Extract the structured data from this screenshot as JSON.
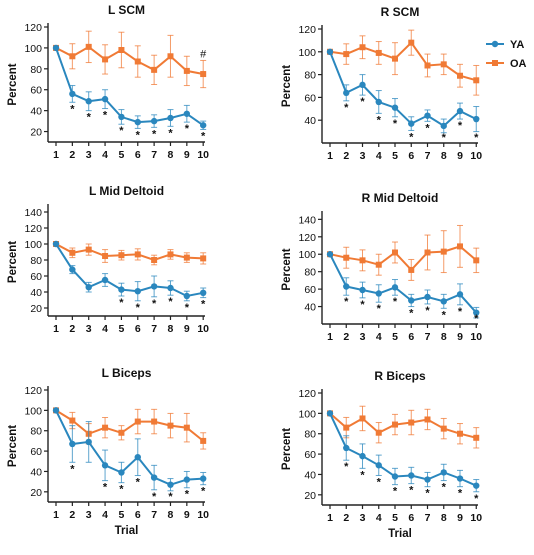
{
  "colors": {
    "ya": "#2a87be",
    "oa": "#f07a35",
    "axis": "#222222",
    "text": "#111111"
  },
  "legend": {
    "placement": "top-right",
    "items": [
      {
        "label": "YA",
        "series": "ya"
      },
      {
        "label": "OA",
        "series": "oa"
      }
    ]
  },
  "chart_data": [
    {
      "type": "line",
      "title": "L SCM",
      "xlabel": "",
      "ylabel": "Percent",
      "x": [
        1,
        2,
        3,
        4,
        5,
        6,
        7,
        8,
        9,
        10
      ],
      "ylim": [
        10,
        120
      ],
      "yticks": [
        20,
        40,
        60,
        80,
        100,
        120
      ],
      "series": [
        {
          "name": "YA",
          "key": "ya",
          "values": [
            100,
            56,
            49,
            51,
            34,
            29,
            30,
            33,
            37,
            26
          ],
          "err": [
            0,
            8,
            9,
            9,
            7,
            6,
            6,
            8,
            8,
            4
          ]
        },
        {
          "name": "OA",
          "key": "oa",
          "values": [
            100,
            92,
            101,
            89,
            98,
            87,
            79,
            92,
            78,
            75
          ],
          "err": [
            0,
            12,
            15,
            14,
            17,
            15,
            14,
            20,
            14,
            13
          ]
        }
      ],
      "ya_sig": [
        "",
        "*",
        "*",
        "*",
        "*",
        "*",
        "*",
        "*",
        "*",
        "*"
      ],
      "oa_sig": [
        "",
        "",
        "",
        "",
        "",
        "",
        "",
        "",
        "",
        "#"
      ]
    },
    {
      "type": "line",
      "title": "R SCM",
      "xlabel": "",
      "ylabel": "Percent",
      "x": [
        1,
        2,
        3,
        4,
        5,
        6,
        7,
        8,
        9,
        10
      ],
      "ylim": [
        20,
        120
      ],
      "yticks": [
        40,
        60,
        80,
        100,
        120
      ],
      "series": [
        {
          "name": "YA",
          "key": "ya",
          "values": [
            100,
            64,
            71,
            56,
            51,
            37,
            44,
            35,
            48,
            41
          ],
          "err": [
            0,
            7,
            9,
            10,
            8,
            6,
            5,
            6,
            7,
            11
          ]
        },
        {
          "name": "OA",
          "key": "oa",
          "values": [
            100,
            98,
            104,
            99,
            94,
            108,
            88,
            89,
            79,
            75
          ],
          "err": [
            0,
            9,
            10,
            10,
            14,
            11,
            10,
            9,
            10,
            13
          ]
        }
      ],
      "ya_sig": [
        "",
        "*",
        "*",
        "*",
        "*",
        "*",
        "*",
        "*",
        "*",
        "*"
      ],
      "oa_sig": [
        "",
        "",
        "",
        "",
        "",
        "",
        "",
        "",
        "",
        ""
      ]
    },
    {
      "type": "line",
      "title": "L Mid Deltoid",
      "xlabel": "",
      "ylabel": "Percent",
      "x": [
        1,
        2,
        3,
        4,
        5,
        6,
        7,
        8,
        9,
        10
      ],
      "ylim": [
        10,
        145
      ],
      "yticks": [
        20,
        40,
        60,
        80,
        100,
        120,
        140
      ],
      "series": [
        {
          "name": "YA",
          "key": "ya",
          "values": [
            100,
            68,
            46,
            55,
            43,
            41,
            47,
            45,
            35,
            39
          ],
          "err": [
            0,
            5,
            6,
            8,
            8,
            12,
            13,
            9,
            6,
            6
          ]
        },
        {
          "name": "OA",
          "key": "oa",
          "values": [
            100,
            89,
            93,
            85,
            86,
            87,
            80,
            87,
            83,
            82
          ],
          "err": [
            0,
            6,
            7,
            8,
            6,
            7,
            6,
            6,
            6,
            7
          ]
        }
      ],
      "ya_sig": [
        "",
        "",
        "",
        "",
        "*",
        "*",
        "*",
        "*",
        "*",
        "*"
      ],
      "oa_sig": [
        "",
        "",
        "",
        "",
        "",
        "",
        "",
        "",
        "",
        ""
      ]
    },
    {
      "type": "line",
      "title": "R Mid Deltoid",
      "xlabel": "",
      "ylabel": "Percent",
      "x": [
        1,
        2,
        3,
        4,
        5,
        6,
        7,
        8,
        9,
        10
      ],
      "ylim": [
        20,
        145
      ],
      "yticks": [
        40,
        60,
        80,
        100,
        120,
        140
      ],
      "series": [
        {
          "name": "YA",
          "key": "ya",
          "values": [
            100,
            63,
            59,
            55,
            62,
            47,
            51,
            46,
            54,
            33
          ],
          "err": [
            0,
            10,
            9,
            10,
            9,
            7,
            8,
            8,
            12,
            6
          ]
        },
        {
          "name": "OA",
          "key": "oa",
          "values": [
            100,
            96,
            93,
            88,
            102,
            82,
            102,
            103,
            109,
            93
          ],
          "err": [
            0,
            12,
            12,
            12,
            12,
            12,
            20,
            24,
            24,
            14
          ]
        }
      ],
      "ya_sig": [
        "",
        "*",
        "*",
        "*",
        "*",
        "*",
        "*",
        "*",
        "*",
        "*"
      ],
      "oa_sig": [
        "",
        "",
        "",
        "",
        "",
        "",
        "",
        "",
        "",
        ""
      ]
    },
    {
      "type": "line",
      "title": "L Biceps",
      "xlabel": "Trial",
      "ylabel": "Percent",
      "x": [
        1,
        2,
        3,
        4,
        5,
        6,
        7,
        8,
        9,
        10
      ],
      "ylim": [
        10,
        120
      ],
      "yticks": [
        20,
        40,
        60,
        80,
        100,
        120
      ],
      "series": [
        {
          "name": "YA",
          "key": "ya",
          "values": [
            100,
            67,
            69,
            46,
            39,
            54,
            34,
            27,
            32,
            33
          ],
          "err": [
            0,
            18,
            20,
            15,
            10,
            18,
            12,
            6,
            8,
            6
          ]
        },
        {
          "name": "OA",
          "key": "oa",
          "values": [
            100,
            90,
            77,
            83,
            78,
            89,
            89,
            85,
            83,
            70
          ],
          "err": [
            0,
            8,
            10,
            10,
            7,
            12,
            12,
            12,
            14,
            8
          ]
        }
      ],
      "ya_sig": [
        "",
        "*",
        "",
        "*",
        "*",
        "*",
        "*",
        "*",
        "*",
        "*"
      ],
      "oa_sig": [
        "",
        "",
        "",
        "",
        "",
        "",
        "",
        "",
        "",
        ""
      ]
    },
    {
      "type": "line",
      "title": "R Biceps",
      "xlabel": "Trial",
      "ylabel": "Percent",
      "x": [
        1,
        2,
        3,
        4,
        5,
        6,
        7,
        8,
        9,
        10
      ],
      "ylim": [
        10,
        120
      ],
      "yticks": [
        20,
        40,
        60,
        80,
        100,
        120
      ],
      "series": [
        {
          "name": "YA",
          "key": "ya",
          "values": [
            100,
            66,
            58,
            49,
            38,
            39,
            35,
            42,
            36,
            29
          ],
          "err": [
            0,
            12,
            12,
            10,
            8,
            8,
            7,
            8,
            8,
            6
          ]
        },
        {
          "name": "OA",
          "key": "oa",
          "values": [
            100,
            86,
            95,
            81,
            89,
            91,
            94,
            85,
            80,
            76
          ],
          "err": [
            0,
            10,
            12,
            10,
            10,
            12,
            10,
            10,
            10,
            10
          ]
        }
      ],
      "ya_sig": [
        "",
        "*",
        "*",
        "*",
        "*",
        "*",
        "*",
        "*",
        "*",
        "*"
      ],
      "oa_sig": [
        "",
        "",
        "",
        "",
        "",
        "",
        "",
        "",
        "",
        ""
      ]
    }
  ]
}
